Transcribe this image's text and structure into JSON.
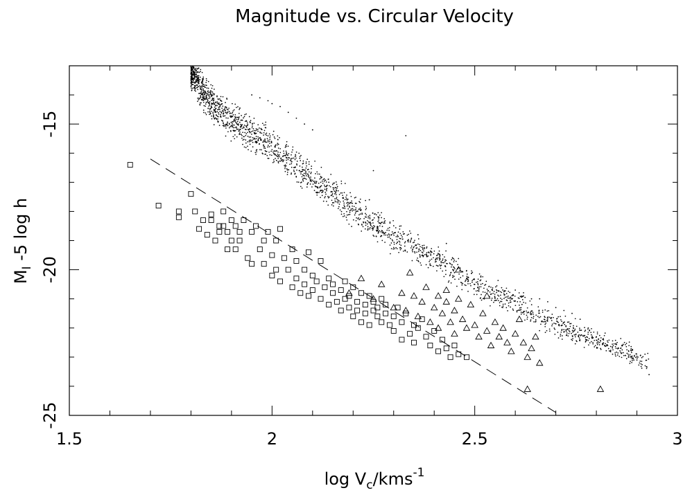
{
  "chart_data": {
    "type": "scatter",
    "title": "Magnitude vs. Circular Velocity",
    "xlabel": {
      "text": "log V",
      "sub": "c",
      "rest": "/kms",
      "sup": "-1"
    },
    "ylabel": {
      "text": "M",
      "sub": "I",
      "rest": " -5 log h"
    },
    "xlim": [
      1.5,
      3.0
    ],
    "ylim": [
      -25,
      -13
    ],
    "y_inverted": true,
    "grid": false,
    "legend": "none",
    "x_ticks": [
      {
        "value": 1.5,
        "label": "1.5"
      },
      {
        "value": 2.0,
        "label": "2"
      },
      {
        "value": 2.5,
        "label": "2.5"
      },
      {
        "value": 3.0,
        "label": "3"
      }
    ],
    "y_ticks": [
      {
        "value": -15,
        "label": "-15"
      },
      {
        "value": -20,
        "label": "-20"
      },
      {
        "value": -25,
        "label": "-25"
      }
    ],
    "series": [
      {
        "marker": "dot",
        "band": {
          "x_range": [
            1.8,
            2.93
          ],
          "center": [
            [
              1.8,
              -13.2
            ],
            [
              1.85,
              -14.3
            ],
            [
              1.9,
              -14.9
            ],
            [
              2.0,
              -15.8
            ],
            [
              2.1,
              -16.9
            ],
            [
              2.2,
              -17.9
            ],
            [
              2.3,
              -18.9
            ],
            [
              2.4,
              -19.6
            ],
            [
              2.5,
              -20.5
            ],
            [
              2.6,
              -21.1
            ],
            [
              2.7,
              -21.9
            ],
            [
              2.8,
              -22.4
            ],
            [
              2.93,
              -23.2
            ]
          ],
          "width": 0.9,
          "count": 2200
        },
        "points": [
          [
            1.95,
            -14.0
          ],
          [
            1.97,
            -14.1
          ],
          [
            1.99,
            -14.2
          ],
          [
            2.0,
            -14.3
          ],
          [
            2.02,
            -14.4
          ],
          [
            2.04,
            -14.6
          ],
          [
            2.06,
            -14.8
          ],
          [
            2.08,
            -15.0
          ],
          [
            2.1,
            -15.2
          ],
          [
            2.12,
            -16.8
          ],
          [
            2.14,
            -17.0
          ],
          [
            2.16,
            -17.2
          ],
          [
            2.33,
            -15.4
          ],
          [
            2.25,
            -16.6
          ],
          [
            2.24,
            -17.6
          ],
          [
            2.36,
            -18.8
          ],
          [
            2.43,
            -19.1
          ],
          [
            2.44,
            -19.8
          ],
          [
            2.45,
            -20.1
          ],
          [
            2.6,
            -20.7
          ],
          [
            2.62,
            -20.9
          ],
          [
            2.64,
            -21.0
          ],
          [
            2.66,
            -21.0
          ],
          [
            2.68,
            -21.1
          ],
          [
            2.7,
            -21.3
          ],
          [
            2.72,
            -21.4
          ],
          [
            2.74,
            -21.5
          ],
          [
            2.76,
            -21.7
          ],
          [
            2.78,
            -22.0
          ],
          [
            2.8,
            -22.3
          ],
          [
            2.82,
            -22.6
          ],
          [
            2.84,
            -22.9
          ],
          [
            2.86,
            -22.7
          ],
          [
            2.88,
            -23.0
          ],
          [
            2.9,
            -23.1
          ],
          [
            2.93,
            -23.6
          ]
        ]
      },
      {
        "marker": "square",
        "points": [
          [
            1.65,
            -16.4
          ],
          [
            1.72,
            -17.8
          ],
          [
            1.77,
            -18.0
          ],
          [
            1.77,
            -18.2
          ],
          [
            1.8,
            -17.4
          ],
          [
            1.81,
            -18.0
          ],
          [
            1.82,
            -18.6
          ],
          [
            1.83,
            -18.3
          ],
          [
            1.84,
            -18.8
          ],
          [
            1.85,
            -18.1
          ],
          [
            1.85,
            -18.3
          ],
          [
            1.86,
            -19.0
          ],
          [
            1.87,
            -18.5
          ],
          [
            1.87,
            -18.7
          ],
          [
            1.88,
            -18.0
          ],
          [
            1.88,
            -18.5
          ],
          [
            1.89,
            -19.3
          ],
          [
            1.89,
            -18.7
          ],
          [
            1.9,
            -18.3
          ],
          [
            1.9,
            -19.0
          ],
          [
            1.91,
            -18.5
          ],
          [
            1.91,
            -19.3
          ],
          [
            1.92,
            -18.7
          ],
          [
            1.92,
            -19.0
          ],
          [
            1.93,
            -18.3
          ],
          [
            1.94,
            -19.6
          ],
          [
            1.95,
            -19.8
          ],
          [
            1.95,
            -18.7
          ],
          [
            1.96,
            -18.5
          ],
          [
            1.97,
            -19.3
          ],
          [
            1.98,
            -19.0
          ],
          [
            1.98,
            -19.8
          ],
          [
            1.99,
            -18.7
          ],
          [
            2.0,
            -19.5
          ],
          [
            2.0,
            -20.2
          ],
          [
            2.01,
            -19.0
          ],
          [
            2.01,
            -20.0
          ],
          [
            2.02,
            -18.6
          ],
          [
            2.02,
            -20.4
          ],
          [
            2.03,
            -19.6
          ],
          [
            2.04,
            -20.0
          ],
          [
            2.05,
            -20.6
          ],
          [
            2.05,
            -19.3
          ],
          [
            2.06,
            -20.3
          ],
          [
            2.06,
            -19.7
          ],
          [
            2.07,
            -20.8
          ],
          [
            2.08,
            -20.0
          ],
          [
            2.08,
            -20.5
          ],
          [
            2.09,
            -19.4
          ],
          [
            2.09,
            -20.9
          ],
          [
            2.1,
            -20.2
          ],
          [
            2.1,
            -20.7
          ],
          [
            2.11,
            -20.4
          ],
          [
            2.12,
            -19.7
          ],
          [
            2.12,
            -21.0
          ],
          [
            2.13,
            -20.6
          ],
          [
            2.14,
            -20.3
          ],
          [
            2.14,
            -21.2
          ],
          [
            2.15,
            -20.8
          ],
          [
            2.15,
            -20.5
          ],
          [
            2.16,
            -21.1
          ],
          [
            2.17,
            -20.7
          ],
          [
            2.17,
            -21.4
          ],
          [
            2.18,
            -20.4
          ],
          [
            2.18,
            -21.0
          ],
          [
            2.19,
            -21.3
          ],
          [
            2.19,
            -20.9
          ],
          [
            2.2,
            -20.6
          ],
          [
            2.2,
            -21.6
          ],
          [
            2.21,
            -21.1
          ],
          [
            2.21,
            -21.4
          ],
          [
            2.22,
            -20.8
          ],
          [
            2.22,
            -21.8
          ],
          [
            2.23,
            -21.2
          ],
          [
            2.23,
            -21.5
          ],
          [
            2.24,
            -20.9
          ],
          [
            2.24,
            -21.9
          ],
          [
            2.25,
            -21.4
          ],
          [
            2.25,
            -21.1
          ],
          [
            2.26,
            -21.6
          ],
          [
            2.26,
            -21.3
          ],
          [
            2.27,
            -21.8
          ],
          [
            2.27,
            -21.0
          ],
          [
            2.28,
            -21.5
          ],
          [
            2.28,
            -21.2
          ],
          [
            2.29,
            -21.9
          ],
          [
            2.3,
            -21.6
          ],
          [
            2.3,
            -22.1
          ],
          [
            2.31,
            -21.3
          ],
          [
            2.32,
            -21.8
          ],
          [
            2.32,
            -22.4
          ],
          [
            2.33,
            -21.5
          ],
          [
            2.34,
            -22.2
          ],
          [
            2.35,
            -21.9
          ],
          [
            2.35,
            -22.5
          ],
          [
            2.36,
            -22.0
          ],
          [
            2.37,
            -21.7
          ],
          [
            2.38,
            -22.3
          ],
          [
            2.39,
            -22.6
          ],
          [
            2.4,
            -22.1
          ],
          [
            2.41,
            -22.8
          ],
          [
            2.42,
            -22.4
          ],
          [
            2.43,
            -22.7
          ],
          [
            2.44,
            -23.0
          ],
          [
            2.45,
            -22.6
          ],
          [
            2.46,
            -22.9
          ],
          [
            2.48,
            -23.0
          ]
        ]
      },
      {
        "marker": "triangle",
        "points": [
          [
            2.19,
            -20.8
          ],
          [
            2.22,
            -20.3
          ],
          [
            2.25,
            -21.0
          ],
          [
            2.27,
            -20.5
          ],
          [
            2.3,
            -21.3
          ],
          [
            2.32,
            -20.8
          ],
          [
            2.33,
            -21.4
          ],
          [
            2.34,
            -20.1
          ],
          [
            2.35,
            -20.9
          ],
          [
            2.36,
            -21.6
          ],
          [
            2.37,
            -21.1
          ],
          [
            2.38,
            -20.6
          ],
          [
            2.39,
            -21.8
          ],
          [
            2.4,
            -21.3
          ],
          [
            2.41,
            -20.9
          ],
          [
            2.41,
            -22.0
          ],
          [
            2.42,
            -21.5
          ],
          [
            2.43,
            -21.1
          ],
          [
            2.43,
            -20.7
          ],
          [
            2.44,
            -21.8
          ],
          [
            2.45,
            -21.4
          ],
          [
            2.45,
            -22.2
          ],
          [
            2.46,
            -21.0
          ],
          [
            2.46,
            -20.0
          ],
          [
            2.47,
            -21.7
          ],
          [
            2.48,
            -22.0
          ],
          [
            2.49,
            -21.2
          ],
          [
            2.5,
            -21.9
          ],
          [
            2.51,
            -22.3
          ],
          [
            2.52,
            -21.5
          ],
          [
            2.53,
            -20.9
          ],
          [
            2.53,
            -22.1
          ],
          [
            2.54,
            -22.6
          ],
          [
            2.55,
            -21.8
          ],
          [
            2.56,
            -22.3
          ],
          [
            2.57,
            -22.0
          ],
          [
            2.58,
            -22.5
          ],
          [
            2.59,
            -22.8
          ],
          [
            2.6,
            -22.2
          ],
          [
            2.61,
            -21.7
          ],
          [
            2.62,
            -22.5
          ],
          [
            2.63,
            -23.0
          ],
          [
            2.64,
            -22.7
          ],
          [
            2.65,
            -22.3
          ],
          [
            2.66,
            -23.2
          ],
          [
            2.63,
            -24.1
          ],
          [
            2.81,
            -24.1
          ]
        ]
      }
    ],
    "reference_line": {
      "style": "dashed",
      "points": [
        [
          1.7,
          -16.2
        ],
        [
          2.7,
          -24.9
        ]
      ]
    }
  }
}
